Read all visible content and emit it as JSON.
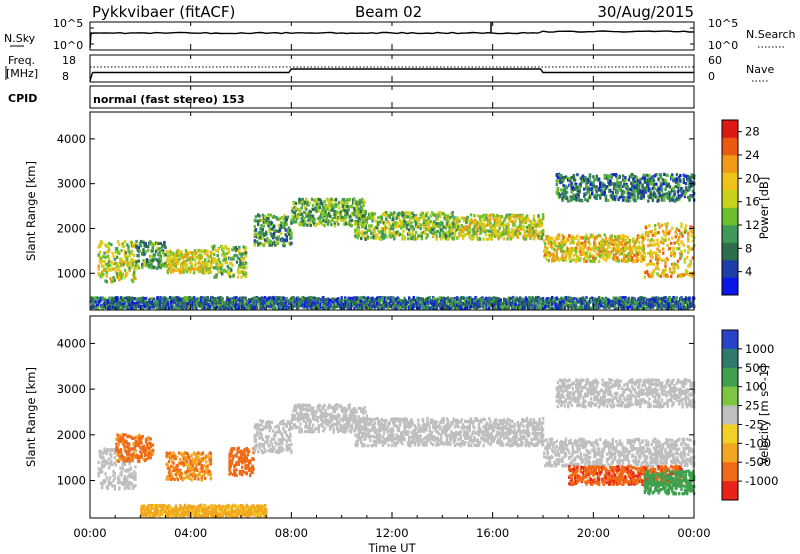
{
  "header": {
    "site": "Pykkvibaer (fitACF)",
    "beam": "Beam 02",
    "date": "30/Aug/2015"
  },
  "strip_labels": {
    "nsky": "N.Sky",
    "nsearch": "N.Search",
    "freq_line1": "Freq.",
    "freq_line2": "[MHz]",
    "nave": "Nave",
    "cpid": "CPID",
    "cpid_value": "normal (fast stereo) 153"
  },
  "noise_axis": {
    "left_top": "10^5",
    "left_bottom": "10^0",
    "right_top": "10^5",
    "right_bottom": "10^0"
  },
  "freq_axis": {
    "left_top": "18",
    "left_bottom": "8",
    "right_top": "60",
    "right_bottom": "0"
  },
  "xaxis": {
    "label": "Time UT",
    "ticks": [
      "00:00",
      "04:00",
      "08:00",
      "12:00",
      "16:00",
      "20:00",
      "00:00"
    ]
  },
  "colors": {
    "ink": "#000000",
    "ground_scatter": "#bfbfbf"
  },
  "chart_data": [
    {
      "type": "heatmap",
      "name": "power",
      "ylabel": "Slant Range [km]",
      "yticks": [
        "1000",
        "2000",
        "3000",
        "4000"
      ],
      "ylim": [
        180,
        4600
      ],
      "xlim_hours": [
        0,
        24
      ],
      "colorbar": {
        "label": "Power [dB]",
        "ticks": [
          "4",
          "8",
          "12",
          "16",
          "20",
          "24",
          "28"
        ],
        "range": [
          0,
          30
        ],
        "colors": [
          "#0a17e6",
          "#1f3ea8",
          "#2f6e4c",
          "#3f9a5a",
          "#6cbf2c",
          "#c8d21b",
          "#f0c21a",
          "#f19a16",
          "#ea5a13",
          "#dc1a12"
        ]
      },
      "bands": [
        {
          "t0": 0.3,
          "t1": 1.8,
          "r0": 800,
          "r1": 1700,
          "p": 16
        },
        {
          "t0": 1.8,
          "t1": 3.0,
          "r0": 1100,
          "r1": 1700,
          "p": 10
        },
        {
          "t0": 3.0,
          "t1": 4.8,
          "r0": 1000,
          "r1": 1500,
          "p": 18
        },
        {
          "t0": 4.8,
          "t1": 6.2,
          "r0": 900,
          "r1": 1600,
          "p": 14
        },
        {
          "t0": 6.5,
          "t1": 8.0,
          "r0": 1600,
          "r1": 2300,
          "p": 11
        },
        {
          "t0": 8.0,
          "t1": 11.0,
          "r0": 2050,
          "r1": 2650,
          "p": 12
        },
        {
          "t0": 10.5,
          "t1": 14.5,
          "r0": 1750,
          "r1": 2350,
          "p": 14
        },
        {
          "t0": 14.5,
          "t1": 18.0,
          "r0": 1750,
          "r1": 2300,
          "p": 17
        },
        {
          "t0": 18.0,
          "t1": 22.0,
          "r0": 1250,
          "r1": 1850,
          "p": 19
        },
        {
          "t0": 22.0,
          "t1": 24.0,
          "r0": 900,
          "r1": 2100,
          "p": 20
        },
        {
          "t0": 18.5,
          "t1": 24.0,
          "r0": 2600,
          "r1": 3200,
          "p": 8
        },
        {
          "t0": 0.0,
          "t1": 24.0,
          "r0": 200,
          "r1": 450,
          "p": 7
        }
      ]
    },
    {
      "type": "heatmap",
      "name": "velocity",
      "ylabel": "Slant Range [km]",
      "yticks": [
        "1000",
        "2000",
        "3000",
        "4000"
      ],
      "ylim": [
        180,
        4600
      ],
      "xlim_hours": [
        0,
        24
      ],
      "colorbar": {
        "label": "Velocity [m s^-1]",
        "ticks": [
          "1000",
          "500",
          "100",
          "25",
          "-25",
          "-100",
          "-500",
          "-1000"
        ],
        "colors": [
          "#2a44c8",
          "#2f7a6a",
          "#3fa04e",
          "#7cc642",
          "#bfbfbf",
          "#f2d026",
          "#f2a621",
          "#f06a17",
          "#e8241a"
        ]
      },
      "bands": [
        {
          "t0": 0.3,
          "t1": 1.8,
          "r0": 800,
          "r1": 1700,
          "v": 0
        },
        {
          "t0": 1.0,
          "t1": 2.5,
          "r0": 1400,
          "r1": 2000,
          "v": -400
        },
        {
          "t0": 3.0,
          "t1": 4.8,
          "r0": 1000,
          "r1": 1600,
          "v": -300
        },
        {
          "t0": 5.5,
          "t1": 6.5,
          "r0": 1100,
          "r1": 1700,
          "v": -500
        },
        {
          "t0": 6.5,
          "t1": 8.0,
          "r0": 1600,
          "r1": 2300,
          "v": 0
        },
        {
          "t0": 8.0,
          "t1": 11.0,
          "r0": 2050,
          "r1": 2650,
          "v": 0
        },
        {
          "t0": 10.5,
          "t1": 18.0,
          "r0": 1750,
          "r1": 2350,
          "v": 0
        },
        {
          "t0": 18.0,
          "t1": 24.0,
          "r0": 1300,
          "r1": 1900,
          "v": 0
        },
        {
          "t0": 19.0,
          "t1": 23.5,
          "r0": 900,
          "r1": 1300,
          "v": -600
        },
        {
          "t0": 18.5,
          "t1": 24.0,
          "r0": 2600,
          "r1": 3200,
          "v": 0
        },
        {
          "t0": 22.0,
          "t1": 24.0,
          "r0": 700,
          "r1": 1200,
          "v": 150
        },
        {
          "t0": 2.0,
          "t1": 7.0,
          "r0": 200,
          "r1": 450,
          "v": -80
        }
      ]
    }
  ]
}
